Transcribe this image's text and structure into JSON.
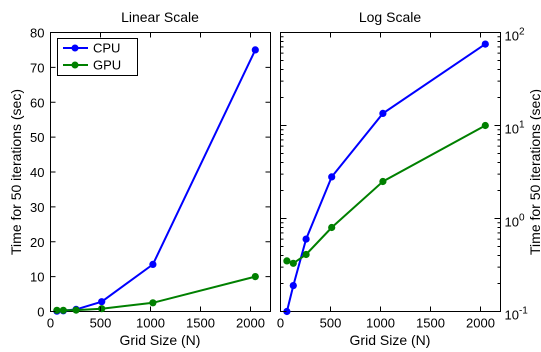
{
  "chart_data": [
    {
      "type": "line",
      "title": "Linear Scale",
      "xlabel": "Grid Size (N)",
      "ylabel": "Time for 50 iterations (sec)",
      "xscale": "linear",
      "yscale": "linear",
      "xlim": [
        0,
        2200
      ],
      "ylim": [
        0,
        80
      ],
      "xticks": [
        0,
        500,
        1000,
        1500,
        2000
      ],
      "yticks": [
        0,
        10,
        20,
        30,
        40,
        50,
        60,
        70,
        80
      ],
      "ytick_side": "left",
      "grid": false,
      "legend": "top-left",
      "x": [
        64,
        128,
        256,
        512,
        1024,
        2048
      ],
      "series": [
        {
          "name": "CPU",
          "color": "#0000ff",
          "marker": "circle",
          "values": [
            0.1,
            0.19,
            0.6,
            2.8,
            13.5,
            75
          ]
        },
        {
          "name": "GPU",
          "color": "#008000",
          "marker": "circle",
          "values": [
            0.35,
            0.33,
            0.41,
            0.8,
            2.5,
            10
          ]
        }
      ]
    },
    {
      "type": "line",
      "title": "Log Scale",
      "xlabel": "Grid Size (N)",
      "ylabel": "Time for 50 iterations (sec)",
      "xscale": "linear",
      "yscale": "log",
      "xlim": [
        0,
        2200
      ],
      "ylim": [
        0.1,
        100
      ],
      "xticks": [
        0,
        500,
        1000,
        1500,
        2000
      ],
      "yticks": [
        {
          "value": 0.1,
          "base": "10",
          "exp": "-1"
        },
        {
          "value": 1,
          "base": "10",
          "exp": "0"
        },
        {
          "value": 10,
          "base": "10",
          "exp": "1"
        },
        {
          "value": 100,
          "base": "10",
          "exp": "2"
        }
      ],
      "ytick_side": "right",
      "grid": false,
      "legend": "none",
      "x": [
        64,
        128,
        256,
        512,
        1024,
        2048
      ],
      "series": [
        {
          "name": "CPU",
          "color": "#0000ff",
          "marker": "circle",
          "values": [
            0.1,
            0.19,
            0.6,
            2.8,
            13.5,
            75
          ]
        },
        {
          "name": "GPU",
          "color": "#008000",
          "marker": "circle",
          "values": [
            0.35,
            0.33,
            0.41,
            0.8,
            2.5,
            10
          ]
        }
      ]
    }
  ]
}
